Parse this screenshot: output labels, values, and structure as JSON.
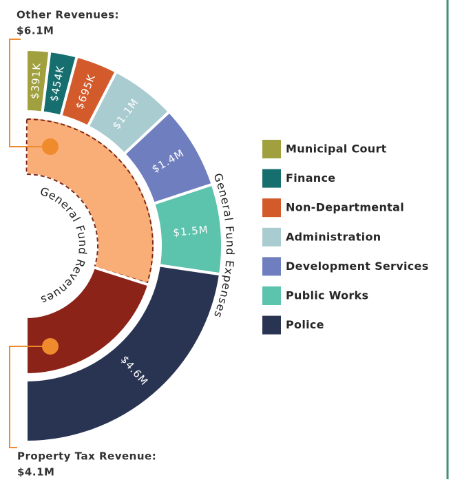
{
  "chart_data": {
    "type": "semi-donut",
    "series": [
      {
        "name": "General Fund Expenses",
        "categories": [
          "Municipal Court",
          "Finance",
          "Non-Departmental",
          "Administration",
          "Development Services",
          "Public Works",
          "Police"
        ],
        "values": [
          391000,
          454000,
          695000,
          1100000,
          1400000,
          1500000,
          4600000
        ],
        "value_labels": [
          "$391K",
          "$454K",
          "$695K",
          "$1.1M",
          "$1.4M",
          "$1.5M",
          "$4.6M"
        ],
        "colors": [
          "#a0a03f",
          "#176e6e",
          "#d35a2b",
          "#a9ccd1",
          "#6f7ebf",
          "#5cc3ad",
          "#283452"
        ]
      },
      {
        "name": "General Fund Revenues",
        "categories": [
          "Other Revenues:",
          "Property Tax Revenue:"
        ],
        "values": [
          6100000,
          4100000
        ],
        "value_labels": [
          "$6.1M",
          "$4.1M"
        ],
        "colors": [
          "#f9ae78",
          "#8b2318"
        ]
      }
    ]
  }
}
